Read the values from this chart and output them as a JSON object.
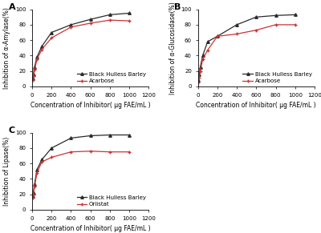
{
  "panel_A": {
    "title": "A",
    "ylabel": "Inhibition of α-Amylase(%)",
    "xlabel": "Concentration of Inhibitor( μg FAE/mL )",
    "xlim": [
      0,
      1200
    ],
    "ylim": [
      0,
      100
    ],
    "xticks": [
      0,
      200,
      400,
      600,
      800,
      1000,
      1200
    ],
    "yticks": [
      0,
      20,
      40,
      60,
      80,
      100
    ],
    "series": [
      {
        "label": "Black Hulless Barley",
        "color": "#2b2b2b",
        "marker": "^",
        "x": [
          6,
          12.5,
          25,
          50,
          100,
          200,
          400,
          600,
          800,
          1000
        ],
        "y": [
          10,
          15,
          25,
          38,
          52,
          70,
          80,
          87,
          93,
          95
        ]
      },
      {
        "label": "Acarbose",
        "color": "#cc3333",
        "marker": "+",
        "x": [
          6,
          12.5,
          25,
          50,
          100,
          200,
          400,
          600,
          800,
          1000
        ],
        "y": [
          8,
          13,
          22,
          35,
          48,
          63,
          77,
          82,
          86,
          85
        ]
      }
    ]
  },
  "panel_B": {
    "title": "B",
    "ylabel": "Inhibition of α-Glucosidase(%)",
    "xlabel": "Concentration of Inhibitor( μg FAE/mL )",
    "xlim": [
      0,
      1200
    ],
    "ylim": [
      0,
      100
    ],
    "xticks": [
      0,
      200,
      400,
      600,
      800,
      1000,
      1200
    ],
    "yticks": [
      0,
      20,
      40,
      60,
      80,
      100
    ],
    "series": [
      {
        "label": "Black Hulless Barley",
        "color": "#2b2b2b",
        "marker": "^",
        "x": [
          6,
          12.5,
          25,
          50,
          100,
          200,
          400,
          600,
          800,
          1000
        ],
        "y": [
          8,
          15,
          25,
          40,
          58,
          65,
          80,
          90,
          92,
          93
        ]
      },
      {
        "label": "Acarbose",
        "color": "#cc3333",
        "marker": "+",
        "x": [
          6,
          12.5,
          25,
          50,
          100,
          200,
          400,
          600,
          800,
          1000
        ],
        "y": [
          5,
          11,
          20,
          35,
          47,
          65,
          68,
          73,
          80,
          80
        ]
      }
    ]
  },
  "panel_C": {
    "title": "C",
    "ylabel": "Inhibition of Lipase(%)",
    "xlabel": "Concentration of Inhibitor( μg FAE/mL )",
    "xlim": [
      0,
      1200
    ],
    "ylim": [
      0,
      100
    ],
    "xticks": [
      0,
      200,
      400,
      600,
      800,
      1000,
      1200
    ],
    "yticks": [
      0,
      20,
      40,
      60,
      80,
      100
    ],
    "series": [
      {
        "label": "Black Hulless Barley",
        "color": "#2b2b2b",
        "marker": "^",
        "x": [
          6,
          12.5,
          25,
          50,
          100,
          200,
          400,
          600,
          800,
          1000
        ],
        "y": [
          18,
          22,
          33,
          52,
          65,
          80,
          93,
          96,
          97,
          97
        ]
      },
      {
        "label": "Orlistat",
        "color": "#cc3333",
        "marker": "+",
        "x": [
          6,
          12.5,
          25,
          50,
          100,
          200,
          400,
          600,
          800,
          1000
        ],
        "y": [
          15,
          20,
          30,
          48,
          62,
          68,
          75,
          76,
          75,
          75
        ]
      }
    ]
  },
  "background_color": "#ffffff",
  "label_fontsize": 5.5,
  "title_fontsize": 8,
  "tick_fontsize": 5,
  "legend_fontsize": 5,
  "line_width": 0.9,
  "marker_size": 2.5
}
